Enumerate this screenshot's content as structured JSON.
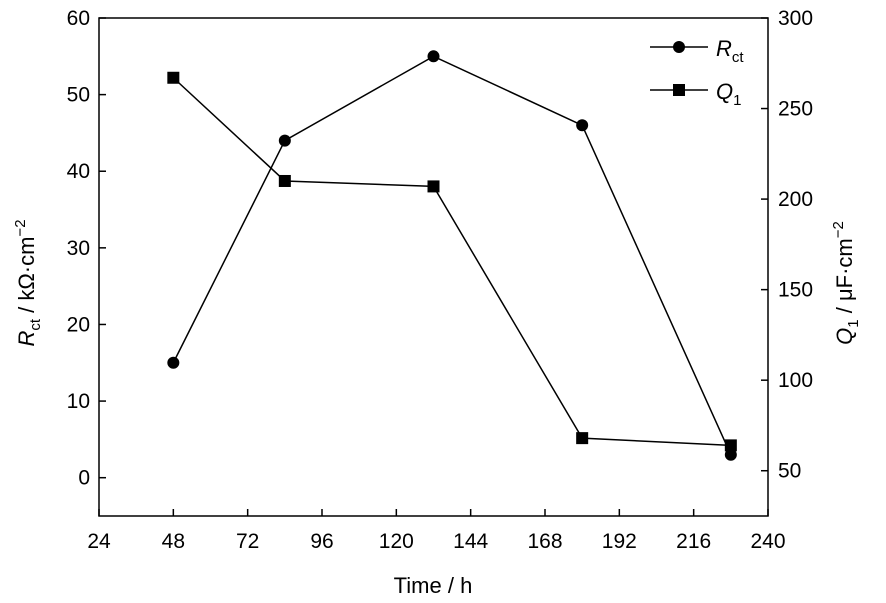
{
  "chart_data": {
    "type": "line",
    "x": [
      48,
      84,
      132,
      180,
      228
    ],
    "xlim": [
      24,
      240
    ],
    "xticks": [
      24,
      48,
      72,
      96,
      120,
      144,
      168,
      192,
      216,
      240
    ],
    "xlabel": "Time / h",
    "y_left": {
      "label_symbol": "R",
      "label_sub": "ct",
      "label_unit": " / kΩ·cm",
      "label_sup": "−2",
      "lim": [
        -5,
        60
      ],
      "ticks": [
        0,
        10,
        20,
        30,
        40,
        50,
        60
      ]
    },
    "y_right": {
      "label_symbol": "Q",
      "label_sub": "1",
      "label_unit": " / μF·cm",
      "label_sup": "−2",
      "lim": [
        25,
        300
      ],
      "ticks": [
        50,
        100,
        150,
        200,
        250,
        300
      ]
    },
    "series": [
      {
        "name": "R",
        "name_sub": "ct",
        "axis": "left",
        "marker": "circle",
        "values": [
          15,
          44,
          55,
          46,
          3
        ]
      },
      {
        "name": "Q",
        "name_sub": "1",
        "axis": "right",
        "marker": "square",
        "values": [
          267,
          210,
          207,
          68,
          64
        ]
      }
    ],
    "legend_position": "top-right",
    "grid": false
  }
}
